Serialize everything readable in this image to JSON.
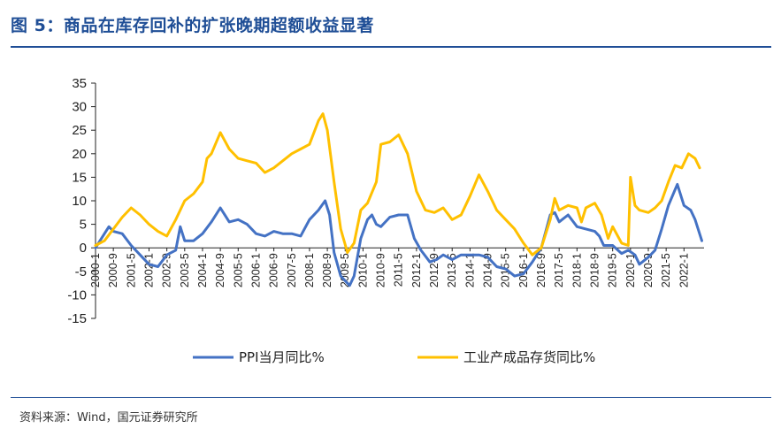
{
  "header": {
    "title": "图 5：商品在库存回补的扩张晚期超额收益显著"
  },
  "footer": {
    "source": "资料来源：Wind，国元证券研究所"
  },
  "colors": {
    "title": "#1f4e96",
    "ppi": "#4472c4",
    "inventory": "#ffc000"
  },
  "chart_data": {
    "type": "line",
    "title": "",
    "xlabel": "",
    "ylabel": "",
    "ylim": [
      -15,
      35
    ],
    "yticks": [
      35,
      30,
      25,
      20,
      15,
      10,
      5,
      0,
      -5,
      -10,
      -15
    ],
    "x_ticks": [
      "2000-1",
      "2000-9",
      "2001-5",
      "2002-1",
      "2002-9",
      "2003-5",
      "2004-1",
      "2004-9",
      "2005-5",
      "2006-1",
      "2006-9",
      "2007-5",
      "2008-1",
      "2008-9",
      "2009-5",
      "2010-1",
      "2010-9",
      "2011-5",
      "2012-1",
      "2012-9",
      "2013-5",
      "2014-1",
      "2014-9",
      "2015-5",
      "2016-1",
      "2016-9",
      "2017-5",
      "2018-1",
      "2018-9",
      "2019-5",
      "2020-1",
      "2020-9",
      "2021-5",
      "2022-1"
    ],
    "grid": false,
    "legend": "bottom",
    "series": [
      {
        "name": "PPI当月同比%",
        "color": "#4472c4",
        "points": [
          [
            "2000-1",
            0
          ],
          [
            "2000-5",
            3
          ],
          [
            "2000-7",
            4.5
          ],
          [
            "2000-9",
            3.5
          ],
          [
            "2001-1",
            3
          ],
          [
            "2001-5",
            0.5
          ],
          [
            "2001-9",
            -1.5
          ],
          [
            "2002-1",
            -3.5
          ],
          [
            "2002-5",
            -4
          ],
          [
            "2002-9",
            -1.5
          ],
          [
            "2003-1",
            -0.5
          ],
          [
            "2003-3",
            4.5
          ],
          [
            "2003-5",
            1.5
          ],
          [
            "2003-9",
            1.5
          ],
          [
            "2004-1",
            3
          ],
          [
            "2004-5",
            5.5
          ],
          [
            "2004-9",
            8.5
          ],
          [
            "2005-1",
            5.5
          ],
          [
            "2005-5",
            6
          ],
          [
            "2005-9",
            5
          ],
          [
            "2006-1",
            3
          ],
          [
            "2006-5",
            2.5
          ],
          [
            "2006-9",
            3.5
          ],
          [
            "2007-1",
            3
          ],
          [
            "2007-5",
            3
          ],
          [
            "2007-9",
            2.5
          ],
          [
            "2008-1",
            6
          ],
          [
            "2008-5",
            8
          ],
          [
            "2008-8",
            10
          ],
          [
            "2008-10",
            7
          ],
          [
            "2008-12",
            -1
          ],
          [
            "2009-3",
            -6
          ],
          [
            "2009-7",
            -8
          ],
          [
            "2009-9",
            -6
          ],
          [
            "2009-12",
            2
          ],
          [
            "2010-3",
            6
          ],
          [
            "2010-5",
            7
          ],
          [
            "2010-7",
            5
          ],
          [
            "2010-9",
            4.5
          ],
          [
            "2011-1",
            6.5
          ],
          [
            "2011-5",
            7
          ],
          [
            "2011-9",
            7
          ],
          [
            "2011-12",
            2
          ],
          [
            "2012-3",
            -0.5
          ],
          [
            "2012-7",
            -3
          ],
          [
            "2012-10",
            -2.5
          ],
          [
            "2013-1",
            -1.5
          ],
          [
            "2013-5",
            -2.5
          ],
          [
            "2013-9",
            -1.5
          ],
          [
            "2014-1",
            -1.5
          ],
          [
            "2014-5",
            -1.5
          ],
          [
            "2014-9",
            -2
          ],
          [
            "2015-1",
            -4
          ],
          [
            "2015-5",
            -4.5
          ],
          [
            "2015-9",
            -6
          ],
          [
            "2016-1",
            -5.5
          ],
          [
            "2016-5",
            -3
          ],
          [
            "2016-9",
            0
          ],
          [
            "2017-1",
            7
          ],
          [
            "2017-3",
            7.5
          ],
          [
            "2017-5",
            5.5
          ],
          [
            "2017-9",
            7
          ],
          [
            "2018-1",
            4.5
          ],
          [
            "2018-5",
            4
          ],
          [
            "2018-9",
            3.5
          ],
          [
            "2018-11",
            2.5
          ],
          [
            "2019-1",
            0.5
          ],
          [
            "2019-5",
            0.5
          ],
          [
            "2019-9",
            -1.2
          ],
          [
            "2019-12",
            -0.5
          ],
          [
            "2020-3",
            -1.5
          ],
          [
            "2020-5",
            -3.5
          ],
          [
            "2020-9",
            -2
          ],
          [
            "2020-12",
            -0.5
          ],
          [
            "2021-3",
            4
          ],
          [
            "2021-6",
            9
          ],
          [
            "2021-10",
            13.5
          ],
          [
            "2022-1",
            9
          ],
          [
            "2022-4",
            8
          ],
          [
            "2022-6",
            6
          ],
          [
            "2022-9",
            1.5
          ]
        ]
      },
      {
        "name": "工业产成品存货同比%",
        "color": "#ffc000",
        "points": [
          [
            "2000-1",
            0.5
          ],
          [
            "2000-5",
            1.5
          ],
          [
            "2000-9",
            4
          ],
          [
            "2001-1",
            6.5
          ],
          [
            "2001-5",
            8.5
          ],
          [
            "2001-9",
            7
          ],
          [
            "2002-1",
            5
          ],
          [
            "2002-5",
            3.5
          ],
          [
            "2002-9",
            2.5
          ],
          [
            "2003-1",
            6
          ],
          [
            "2003-5",
            10
          ],
          [
            "2003-9",
            11.5
          ],
          [
            "2004-1",
            14
          ],
          [
            "2004-3",
            19
          ],
          [
            "2004-5",
            20
          ],
          [
            "2004-9",
            24.5
          ],
          [
            "2005-1",
            21
          ],
          [
            "2005-5",
            19
          ],
          [
            "2005-9",
            18.5
          ],
          [
            "2006-1",
            18
          ],
          [
            "2006-5",
            16
          ],
          [
            "2006-9",
            17
          ],
          [
            "2007-1",
            18.5
          ],
          [
            "2007-5",
            20
          ],
          [
            "2007-9",
            21
          ],
          [
            "2008-1",
            22
          ],
          [
            "2008-5",
            27
          ],
          [
            "2008-7",
            28.5
          ],
          [
            "2008-9",
            25
          ],
          [
            "2008-12",
            14
          ],
          [
            "2009-3",
            4
          ],
          [
            "2009-6",
            -1
          ],
          [
            "2009-9",
            1
          ],
          [
            "2009-12",
            8
          ],
          [
            "2010-3",
            9.5
          ],
          [
            "2010-7",
            14
          ],
          [
            "2010-9",
            22
          ],
          [
            "2011-1",
            22.5
          ],
          [
            "2011-5",
            24
          ],
          [
            "2011-9",
            20
          ],
          [
            "2012-1",
            12
          ],
          [
            "2012-5",
            8
          ],
          [
            "2012-9",
            7.5
          ],
          [
            "2013-1",
            8.5
          ],
          [
            "2013-5",
            6
          ],
          [
            "2013-9",
            7
          ],
          [
            "2014-1",
            11
          ],
          [
            "2014-5",
            15.5
          ],
          [
            "2014-9",
            12
          ],
          [
            "2015-1",
            8
          ],
          [
            "2015-5",
            6
          ],
          [
            "2015-9",
            4
          ],
          [
            "2016-1",
            1
          ],
          [
            "2016-5",
            -1.5
          ],
          [
            "2016-9",
            0
          ],
          [
            "2017-1",
            6
          ],
          [
            "2017-3",
            10.5
          ],
          [
            "2017-5",
            8
          ],
          [
            "2017-9",
            9
          ],
          [
            "2018-1",
            8.5
          ],
          [
            "2018-3",
            5.5
          ],
          [
            "2018-5",
            8.5
          ],
          [
            "2018-9",
            9.5
          ],
          [
            "2018-12",
            7
          ],
          [
            "2019-3",
            2
          ],
          [
            "2019-5",
            4.5
          ],
          [
            "2019-9",
            1
          ],
          [
            "2019-12",
            0.5
          ],
          [
            "2020-1",
            15
          ],
          [
            "2020-3",
            9
          ],
          [
            "2020-5",
            8
          ],
          [
            "2020-9",
            7.5
          ],
          [
            "2020-12",
            8.5
          ],
          [
            "2021-3",
            10
          ],
          [
            "2021-6",
            14
          ],
          [
            "2021-9",
            17.5
          ],
          [
            "2021-12",
            17
          ],
          [
            "2022-3",
            20
          ],
          [
            "2022-6",
            19
          ],
          [
            "2022-8",
            17
          ]
        ]
      }
    ]
  }
}
